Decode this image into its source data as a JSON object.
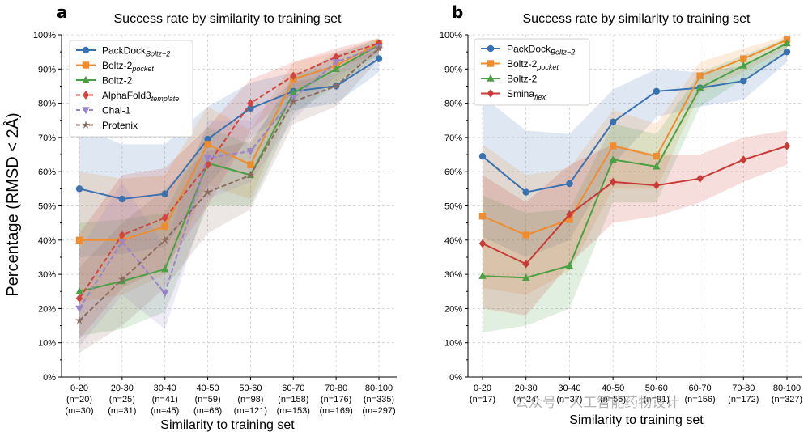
{
  "y_axis_label": "Percentage (RMSD < 2Å)",
  "watermark": "公众号 · 人工智能药物设计",
  "chart_data": [
    {
      "type": "line",
      "panel": "a",
      "title": "Success rate by similarity to training set",
      "xlabel": "Similarity to training set",
      "ylabel": "Percentage (RMSD < 2Å)",
      "ylim": [
        0,
        100
      ],
      "yticks": [
        0,
        10,
        20,
        30,
        40,
        50,
        60,
        70,
        80,
        90,
        100
      ],
      "ytick_suffix": "%",
      "grid": true,
      "legend_position": "top-left",
      "categories": [
        "0-20",
        "20-30",
        "30-40",
        "40-50",
        "50-60",
        "60-70",
        "70-80",
        "80-100"
      ],
      "category_counts_1": [
        "(n=20)",
        "(n=25)",
        "(n=41)",
        "(n=59)",
        "(n=98)",
        "(n=158)",
        "(n=176)",
        "(n=335)"
      ],
      "category_counts_2": [
        "(m=30)",
        "(m=31)",
        "(m=45)",
        "(m=66)",
        "(m=121)",
        "(m=153)",
        "(m=169)",
        "(m=297)"
      ],
      "series": [
        {
          "name": "PackDock",
          "name_sub": "Boltz−2",
          "color": "#3a72b0",
          "marker": "circle",
          "dashed": false,
          "values": [
            55,
            52,
            53.5,
            69.5,
            78.5,
            83.5,
            85,
            93
          ],
          "lower": [
            35,
            36,
            38,
            56,
            70,
            78,
            80,
            89
          ],
          "upper": [
            73,
            68,
            68,
            79,
            86,
            89,
            90,
            96
          ]
        },
        {
          "name": "Boltz-2",
          "name_sub": "pocket",
          "color": "#ef8c2d",
          "marker": "square",
          "dashed": false,
          "values": [
            40,
            40,
            44,
            68,
            62,
            87,
            91,
            97.5
          ],
          "lower": [
            22,
            24,
            30,
            56,
            52,
            81,
            86,
            95
          ],
          "upper": [
            60,
            58,
            59,
            79,
            72,
            92,
            95,
            99
          ]
        },
        {
          "name": "Boltz-2",
          "name_sub": "",
          "color": "#4aa043",
          "marker": "triangle-up",
          "dashed": false,
          "values": [
            25,
            28,
            31.5,
            62.5,
            59,
            83,
            90,
            97
          ],
          "lower": [
            12,
            14,
            19,
            50,
            50,
            77,
            85,
            94
          ],
          "upper": [
            45,
            46,
            48,
            73,
            68,
            88,
            94,
            99
          ]
        },
        {
          "name": "AlphaFold3",
          "name_sub": "template",
          "color": "#d2443e",
          "marker": "diamond",
          "dashed": true,
          "values": [
            23,
            41.5,
            46.5,
            62,
            80,
            88,
            93.5,
            97.5
          ],
          "lower": [
            11,
            26,
            32,
            50,
            72,
            83,
            90,
            95
          ],
          "upper": [
            42,
            59,
            61,
            73,
            87,
            92,
            96,
            99
          ]
        },
        {
          "name": "Chai-1",
          "name_sub": "",
          "color": "#9a85c8",
          "marker": "triangle-down",
          "dashed": true,
          "values": [
            20,
            39.5,
            24.5,
            64,
            66,
            81.5,
            92,
            96.5
          ],
          "lower": [
            9,
            24,
            14,
            52,
            57,
            75,
            88,
            94
          ],
          "upper": [
            37,
            57,
            38,
            75,
            75,
            87,
            95,
            98
          ]
        },
        {
          "name": "Protenix",
          "name_sub": "",
          "color": "#8c6b5d",
          "marker": "star",
          "dashed": true,
          "values": [
            16.5,
            28.5,
            40,
            54,
            59,
            80.5,
            85,
            96
          ],
          "lower": [
            7,
            15,
            26,
            42,
            49,
            74,
            79,
            93
          ],
          "upper": [
            32,
            45,
            55,
            66,
            69,
            86,
            89,
            98
          ]
        }
      ]
    },
    {
      "type": "line",
      "panel": "b",
      "title": "Success rate by similarity to training set",
      "xlabel": "Similarity to training set",
      "ylabel": "",
      "ylim": [
        0,
        100
      ],
      "yticks": [
        0,
        10,
        20,
        30,
        40,
        50,
        60,
        70,
        80,
        90,
        100
      ],
      "ytick_suffix": "%",
      "grid": true,
      "legend_position": "top-left",
      "categories": [
        "0-20",
        "20-30",
        "30-40",
        "40-50",
        "50-60",
        "60-70",
        "70-80",
        "80-100"
      ],
      "category_counts_1": [
        "(n=17)",
        "(n=24)",
        "(n=37)",
        "(n=55)",
        "(n=91)",
        "(n=156)",
        "(n=172)",
        "(n=327)"
      ],
      "category_counts_2": [],
      "series": [
        {
          "name": "PackDock",
          "name_sub": "Boltz−2",
          "color": "#3a72b0",
          "marker": "circle",
          "dashed": false,
          "values": [
            64.5,
            54,
            56.5,
            74.5,
            83.5,
            84.5,
            86.5,
            95
          ],
          "lower": [
            41,
            35,
            40,
            62,
            76,
            79,
            81,
            92
          ],
          "upper": [
            82,
            72,
            71,
            84,
            90,
            89,
            91,
            97
          ]
        },
        {
          "name": "Boltz-2",
          "name_sub": "pocket",
          "color": "#ef8c2d",
          "marker": "square",
          "dashed": false,
          "values": [
            47,
            41.5,
            46,
            67.5,
            64.5,
            88,
            93,
            98.5
          ],
          "lower": [
            26,
            24,
            31,
            55,
            55,
            83,
            89,
            96
          ],
          "upper": [
            68,
            59,
            61,
            78,
            74,
            92,
            96,
            99.5
          ]
        },
        {
          "name": "Boltz-2",
          "name_sub": "",
          "color": "#4aa043",
          "marker": "triangle-up",
          "dashed": false,
          "values": [
            29.5,
            29,
            32.5,
            63.5,
            61.5,
            84.5,
            91,
            97.5
          ],
          "lower": [
            13,
            15,
            20,
            51,
            51,
            79,
            87,
            95
          ],
          "upper": [
            53,
            48,
            49,
            74,
            71,
            89,
            94,
            99
          ]
        },
        {
          "name": "Smina",
          "name_sub": "flex",
          "color": "#c83a36",
          "marker": "diamond",
          "dashed": false,
          "values": [
            39,
            33,
            47.5,
            57,
            56,
            58,
            63.5,
            67.5
          ],
          "lower": [
            20,
            18,
            33,
            45,
            47,
            51,
            57,
            62
          ],
          "upper": [
            59,
            51,
            62,
            68,
            65,
            65,
            70,
            72
          ]
        }
      ]
    }
  ]
}
